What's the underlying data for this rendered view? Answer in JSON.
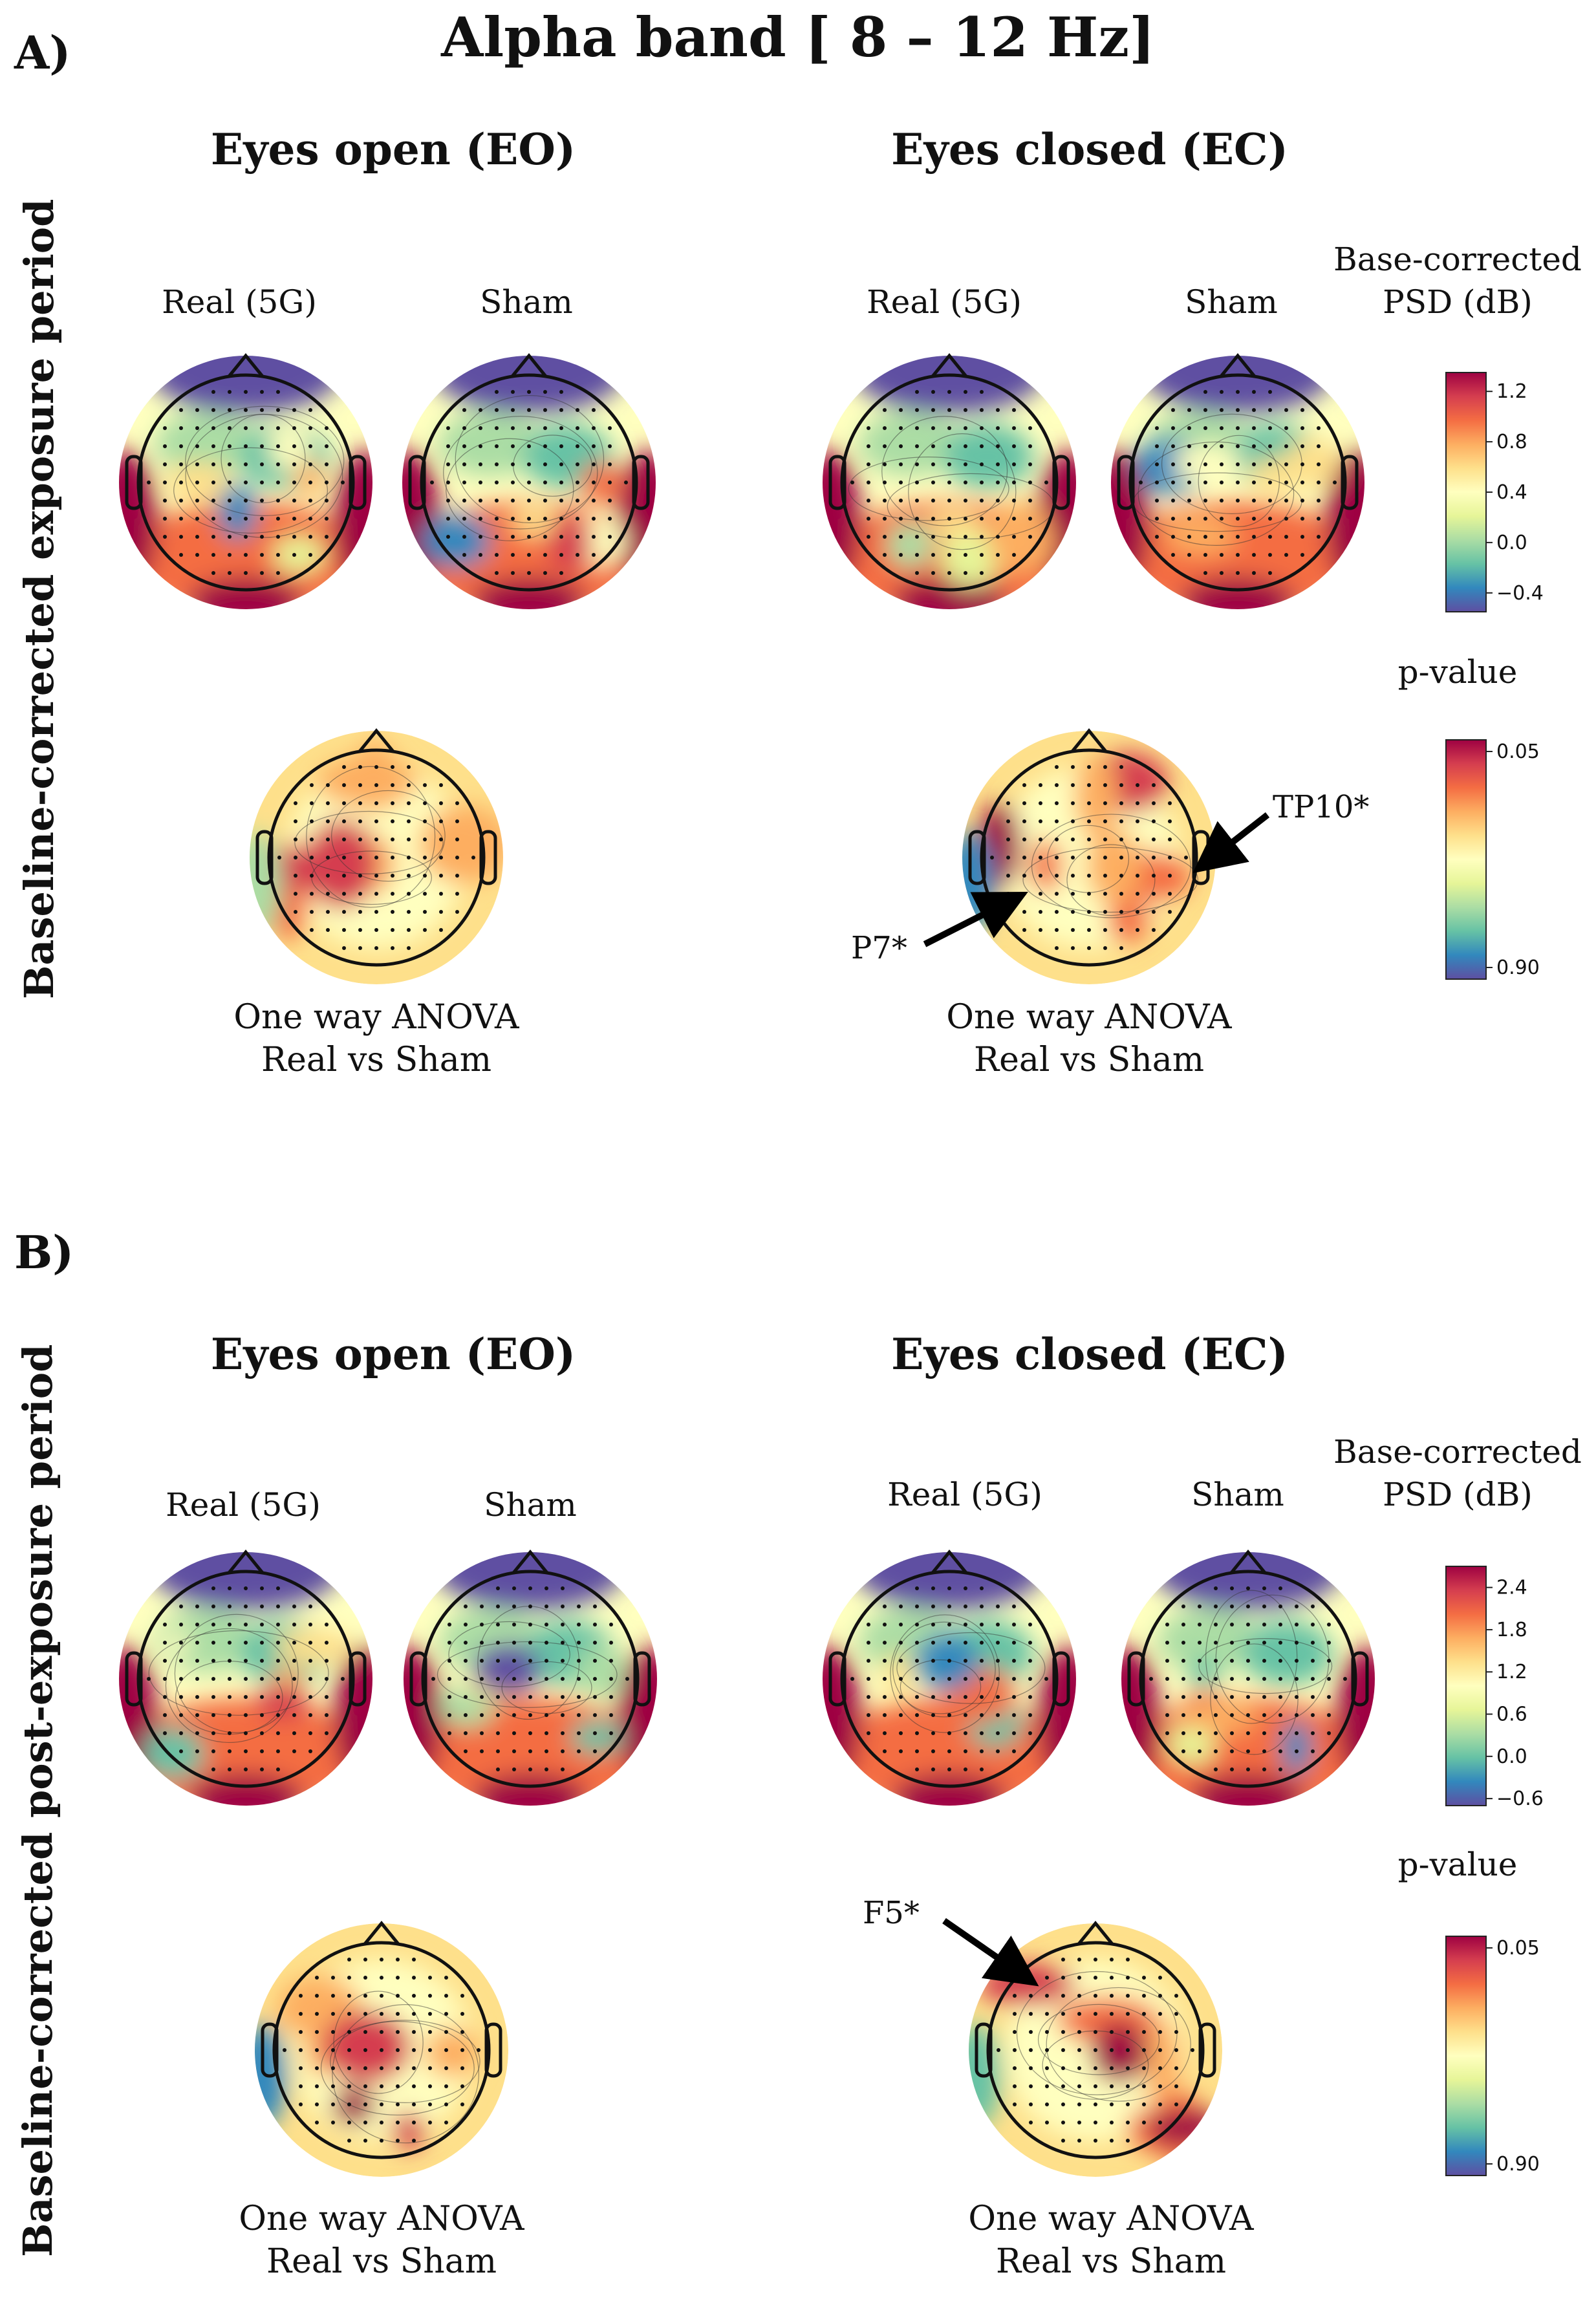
{
  "title": "Alpha band [ 8 – 12 Hz]",
  "panels": [
    {
      "label": "A)",
      "side_label": "Baseline-corrected exposure period",
      "eo_title": "Eyes open (EO)",
      "ec_title": "Eyes closed (EC)",
      "sub_real": "Real (5G)",
      "sub_sham": "Sham",
      "anova_line1": "One way ANOVA",
      "anova_line2": "Real vs Sham",
      "psd_title_1": "Base-corrected",
      "psd_title_2": "PSD (dB)",
      "p_title": "p-value",
      "arrows": [
        "TP10*",
        "P7*"
      ]
    },
    {
      "label": "B)",
      "side_label": "Baseline-corrected post-exposure period",
      "eo_title": "Eyes open (EO)",
      "ec_title": "Eyes closed (EC)",
      "sub_real": "Real (5G)",
      "sub_sham": "Sham",
      "anova_line1": "One way ANOVA",
      "anova_line2": "Real vs Sham",
      "psd_title_1": "Base-corrected",
      "psd_title_2": "PSD (dB)",
      "p_title": "p-value",
      "arrows": [
        "F5*"
      ]
    }
  ],
  "chart_data": [
    {
      "type": "heatmap",
      "panel": "A",
      "title": "Alpha band [ 8 – 12 Hz] — Baseline-corrected exposure period",
      "psd_colorbar": {
        "label": "Base-corrected PSD (dB)",
        "ticks": [
          "1.2",
          "0.8",
          "0.4",
          "0.0",
          "−0.4"
        ],
        "range": [
          -0.55,
          1.35
        ]
      },
      "p_colorbar": {
        "label": "p-value",
        "ticks": [
          "0.05",
          "0.90"
        ],
        "range": [
          0.05,
          0.9
        ]
      },
      "maps": [
        {
          "condition": "Eyes open (EO)",
          "group": "Real (5G)",
          "measure": "PSD (dB)"
        },
        {
          "condition": "Eyes open (EO)",
          "group": "Sham",
          "measure": "PSD (dB)"
        },
        {
          "condition": "Eyes closed (EC)",
          "group": "Real (5G)",
          "measure": "PSD (dB)"
        },
        {
          "condition": "Eyes closed (EC)",
          "group": "Sham",
          "measure": "PSD (dB)"
        },
        {
          "condition": "Eyes open (EO)",
          "group": "One way ANOVA Real vs Sham",
          "measure": "p-value"
        },
        {
          "condition": "Eyes closed (EC)",
          "group": "One way ANOVA Real vs Sham",
          "measure": "p-value",
          "significant_channels": [
            "TP10*",
            "P7*"
          ]
        }
      ]
    },
    {
      "type": "heatmap",
      "panel": "B",
      "title": "Alpha band [ 8 – 12 Hz] — Baseline-corrected post-exposure period",
      "psd_colorbar": {
        "label": "Base-corrected PSD (dB)",
        "ticks": [
          "2.4",
          "1.8",
          "1.2",
          "0.6",
          "0.0",
          "−0.6"
        ],
        "range": [
          -0.7,
          2.7
        ]
      },
      "p_colorbar": {
        "label": "p-value",
        "ticks": [
          "0.05",
          "0.90"
        ],
        "range": [
          0.05,
          0.9
        ]
      },
      "maps": [
        {
          "condition": "Eyes open (EO)",
          "group": "Real (5G)",
          "measure": "PSD (dB)"
        },
        {
          "condition": "Eyes open (EO)",
          "group": "Sham",
          "measure": "PSD (dB)"
        },
        {
          "condition": "Eyes closed (EC)",
          "group": "Real (5G)",
          "measure": "PSD (dB)"
        },
        {
          "condition": "Eyes closed (EC)",
          "group": "Sham",
          "measure": "PSD (dB)"
        },
        {
          "condition": "Eyes open (EO)",
          "group": "One way ANOVA Real vs Sham",
          "measure": "p-value"
        },
        {
          "condition": "Eyes closed (EC)",
          "group": "One way ANOVA Real vs Sham",
          "measure": "p-value",
          "significant_channels": [
            "F5*"
          ]
        }
      ]
    }
  ],
  "colors": {
    "spectral": [
      "#5e4fa2",
      "#3288bd",
      "#66c2a5",
      "#abdda4",
      "#e6f598",
      "#ffffbf",
      "#fee08b",
      "#fdae61",
      "#f46d43",
      "#d53e4f",
      "#9e0142"
    ]
  }
}
